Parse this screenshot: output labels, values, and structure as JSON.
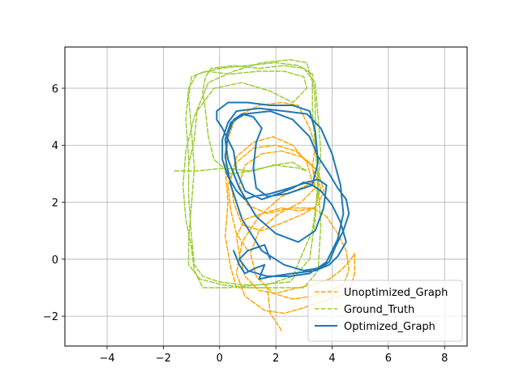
{
  "chart_data": {
    "type": "line",
    "title": "",
    "xlabel": "",
    "ylabel": "",
    "xlim": [
      -5.5,
      8.8
    ],
    "ylim": [
      -3.05,
      7.45
    ],
    "xticks": [
      -4,
      -2,
      0,
      2,
      4,
      6,
      8
    ],
    "yticks": [
      -2,
      0,
      2,
      4,
      6
    ],
    "xtick_labels": [
      "−4",
      "−2",
      "0",
      "2",
      "4",
      "6",
      "8"
    ],
    "ytick_labels": [
      "−2",
      "0",
      "2",
      "4",
      "6"
    ],
    "grid": true,
    "legend_position": "lower-right",
    "series": [
      {
        "name": "Unoptimized_Graph",
        "color": "#ffa500",
        "style": "dashed",
        "width": 1.5,
        "x": [
          2.2,
          1.8,
          1.7,
          0.6,
          0.4,
          0.2,
          0.3,
          0.2,
          0.3,
          0.5,
          0.8,
          1.4,
          2.2,
          2.8,
          3.0,
          3.2,
          3.4,
          3.3,
          3.6,
          3.4,
          2.8,
          2.2,
          1.5,
          0.9,
          0.6,
          0.7,
          0.9,
          1.4,
          2.0,
          2.8,
          3.3,
          3.6,
          3.9,
          4.3,
          4.6,
          4.8,
          4.8,
          4.6,
          4.2,
          3.6,
          3.0,
          2.3,
          1.6,
          0.9,
          0.6,
          0.8,
          1.4,
          2.2,
          2.9,
          3.3,
          3.1,
          2.6,
          1.9,
          1.2,
          0.6,
          0.4,
          0.5,
          0.8,
          1.5,
          2.3,
          3.0,
          3.5,
          3.7,
          3.5,
          2.9,
          2.2,
          1.5,
          0.9,
          0.7,
          1.0,
          1.7,
          2.5,
          3.3,
          3.8,
          4.2,
          4.5,
          4.6,
          4.4,
          3.9,
          3.3,
          2.6,
          1.9,
          1.3,
          1.1,
          1.4,
          2.1,
          2.9,
          3.4,
          3.3,
          2.7,
          2.0,
          1.2,
          0.6,
          0.3,
          0.4,
          0.6,
          1.0
        ],
        "y": [
          -2.5,
          -1.9,
          -1.0,
          -1.0,
          -0.3,
          0.8,
          2.0,
          3.2,
          4.2,
          4.8,
          5.1,
          5.4,
          5.5,
          5.4,
          5.0,
          4.6,
          4.0,
          3.2,
          2.5,
          1.8,
          1.7,
          1.8,
          1.6,
          1.4,
          0.8,
          0.2,
          -0.6,
          -1.1,
          -1.2,
          -1.0,
          -0.9,
          -0.8,
          -0.7,
          -0.4,
          -0.1,
          0.2,
          -0.5,
          -1.2,
          -1.3,
          -1.5,
          -1.7,
          -1.9,
          -1.8,
          -1.3,
          -0.5,
          0.6,
          1.5,
          2.2,
          2.5,
          2.7,
          3.4,
          4.0,
          4.3,
          4.1,
          3.6,
          2.8,
          2.0,
          1.2,
          1.0,
          1.3,
          1.6,
          1.9,
          2.4,
          3.1,
          3.6,
          3.8,
          3.7,
          3.3,
          2.6,
          1.9,
          1.6,
          1.8,
          1.8,
          1.5,
          0.9,
          0.3,
          -0.4,
          -0.9,
          -1.1,
          -1.3,
          -1.4,
          -1.2,
          -0.6,
          0.2,
          1.0,
          1.6,
          2.0,
          2.5,
          3.3,
          3.8,
          4.0,
          3.9,
          3.4,
          2.6,
          1.7,
          0.9,
          0.3
        ]
      },
      {
        "name": "Ground_Truth",
        "color": "#9acd32",
        "style": "dashed",
        "width": 1.5,
        "x": [
          -1.6,
          -0.8,
          0.2,
          1.0,
          2.0,
          2.8,
          3.1,
          2.6,
          1.9,
          1.2,
          0.4,
          -0.2,
          -0.4,
          -0.5,
          -0.6,
          -0.5,
          -0.3,
          0.5,
          1.4,
          2.3,
          3.0,
          3.4,
          3.5,
          3.6,
          3.5,
          3.3,
          2.6,
          1.7,
          0.8,
          0.0,
          -0.6,
          -0.9,
          -1.0,
          -1.1,
          -1.1,
          -1.2,
          -1.1,
          -0.8,
          0.0,
          1.0,
          2.0,
          2.8,
          3.3,
          3.4,
          3.4,
          3.5,
          3.4,
          3.2,
          2.5,
          1.4,
          0.3,
          -0.6,
          -0.9,
          -1.0,
          -1.2,
          -1.3,
          -1.2,
          -0.9,
          -0.4,
          0.5,
          1.5,
          2.5,
          3.1,
          3.3,
          3.3,
          3.4,
          3.5,
          3.6,
          3.5,
          3.0,
          2.1,
          1.0,
          0.1,
          -0.7,
          -1.1,
          -1.1,
          -1.0,
          -0.9,
          -1.0,
          -1.1,
          -1.0,
          -0.5,
          0.4,
          1.4,
          2.3,
          3.0,
          3.1,
          2.6,
          1.8,
          0.8,
          -0.2,
          -0.8,
          -0.9,
          -1.1
        ],
        "y": [
          3.1,
          3.1,
          3.2,
          3.1,
          3.3,
          3.2,
          3.1,
          3.4,
          3.3,
          3.1,
          3.0,
          3.5,
          4.3,
          5.2,
          5.9,
          6.4,
          6.7,
          6.8,
          6.7,
          6.8,
          6.7,
          6.2,
          5.0,
          3.8,
          2.4,
          1.0,
          -0.6,
          -0.9,
          -0.9,
          -0.8,
          -0.6,
          -0.2,
          0.8,
          2.2,
          3.6,
          4.9,
          6.0,
          6.5,
          6.7,
          6.8,
          6.9,
          6.8,
          6.5,
          5.6,
          4.3,
          3.0,
          1.4,
          0.0,
          -0.8,
          -0.9,
          -1.0,
          -1.0,
          -0.4,
          0.4,
          1.4,
          2.6,
          3.8,
          5.0,
          6.2,
          6.6,
          6.9,
          7.0,
          6.9,
          6.2,
          5.2,
          4.0,
          2.7,
          1.2,
          -0.4,
          -1.0,
          -1.0,
          -1.0,
          -0.9,
          -0.7,
          -0.2,
          0.7,
          1.9,
          3.2,
          4.5,
          5.7,
          6.4,
          6.6,
          6.5,
          6.6,
          6.6,
          6.4,
          6.0,
          5.5,
          5.9,
          6.2,
          6.0,
          5.2,
          4.2,
          3.3
        ]
      },
      {
        "name": "Optimized_Graph",
        "color": "#1f77b4",
        "style": "solid",
        "width": 2.0,
        "x": [
          0.5,
          0.7,
          0.9,
          1.3,
          1.6,
          1.4,
          1.9,
          2.6,
          3.4,
          3.9,
          4.2,
          4.5,
          4.3,
          4.0,
          3.6,
          3.3,
          3.0,
          2.6,
          2.1,
          1.5,
          0.9,
          0.6,
          0.5,
          0.3,
          0.1,
          -0.1,
          -0.1,
          0.3,
          1.0,
          1.8,
          2.6,
          3.2,
          3.4,
          3.5,
          3.3,
          3.0,
          2.4,
          1.7,
          1.3,
          1.2,
          1.3,
          1.5,
          1.2,
          0.8,
          0.5,
          0.3,
          0.2,
          0.4,
          0.8,
          1.5,
          2.3,
          3.0,
          3.6,
          3.9,
          4.1,
          4.4,
          4.6,
          4.5,
          4.2,
          3.9,
          3.5,
          3.2,
          2.6,
          1.8,
          0.9,
          0.4,
          0.2,
          0.3,
          0.7,
          1.3,
          2.0,
          2.8,
          3.4,
          3.7,
          3.8,
          3.5,
          3.1,
          2.5,
          1.8,
          1.2,
          0.9,
          0.6,
          0.3,
          0.1,
          0.1,
          0.3,
          0.6,
          1.4,
          2.3,
          3.1,
          3.6,
          4.0,
          4.3,
          4.4,
          4.2,
          3.8,
          3.2,
          2.5,
          1.7,
          1.0,
          0.7,
          1.0,
          1.6,
          1.8
        ],
        "y": [
          0.3,
          -0.2,
          -0.5,
          -0.3,
          -0.2,
          -0.7,
          -0.6,
          -0.5,
          -0.4,
          -0.2,
          0.1,
          0.6,
          1.3,
          1.9,
          2.4,
          2.6,
          2.7,
          2.5,
          2.3,
          2.1,
          2.4,
          3.1,
          3.8,
          4.2,
          4.6,
          4.9,
          5.2,
          5.5,
          5.5,
          5.4,
          5.4,
          5.2,
          4.5,
          3.4,
          2.6,
          2.5,
          2.3,
          2.2,
          2.5,
          3.2,
          4.1,
          4.6,
          5.0,
          5.1,
          4.9,
          4.4,
          3.6,
          2.6,
          1.4,
          0.3,
          -0.2,
          -0.4,
          -0.3,
          -0.1,
          0.4,
          1.0,
          1.6,
          2.1,
          2.5,
          3.0,
          3.6,
          4.3,
          4.9,
          5.2,
          5.1,
          4.8,
          4.2,
          3.5,
          2.5,
          1.5,
          0.9,
          0.6,
          1.0,
          1.8,
          2.6,
          2.8,
          2.7,
          2.5,
          2.3,
          2.2,
          2.1,
          2.4,
          2.9,
          3.5,
          4.2,
          4.8,
          5.2,
          5.3,
          5.2,
          5.1,
          4.6,
          3.7,
          2.6,
          1.6,
          0.7,
          -0.1,
          -0.5,
          -0.6,
          -0.6,
          -0.4,
          0.0,
          0.3,
          0.5,
          0.0
        ]
      }
    ]
  }
}
